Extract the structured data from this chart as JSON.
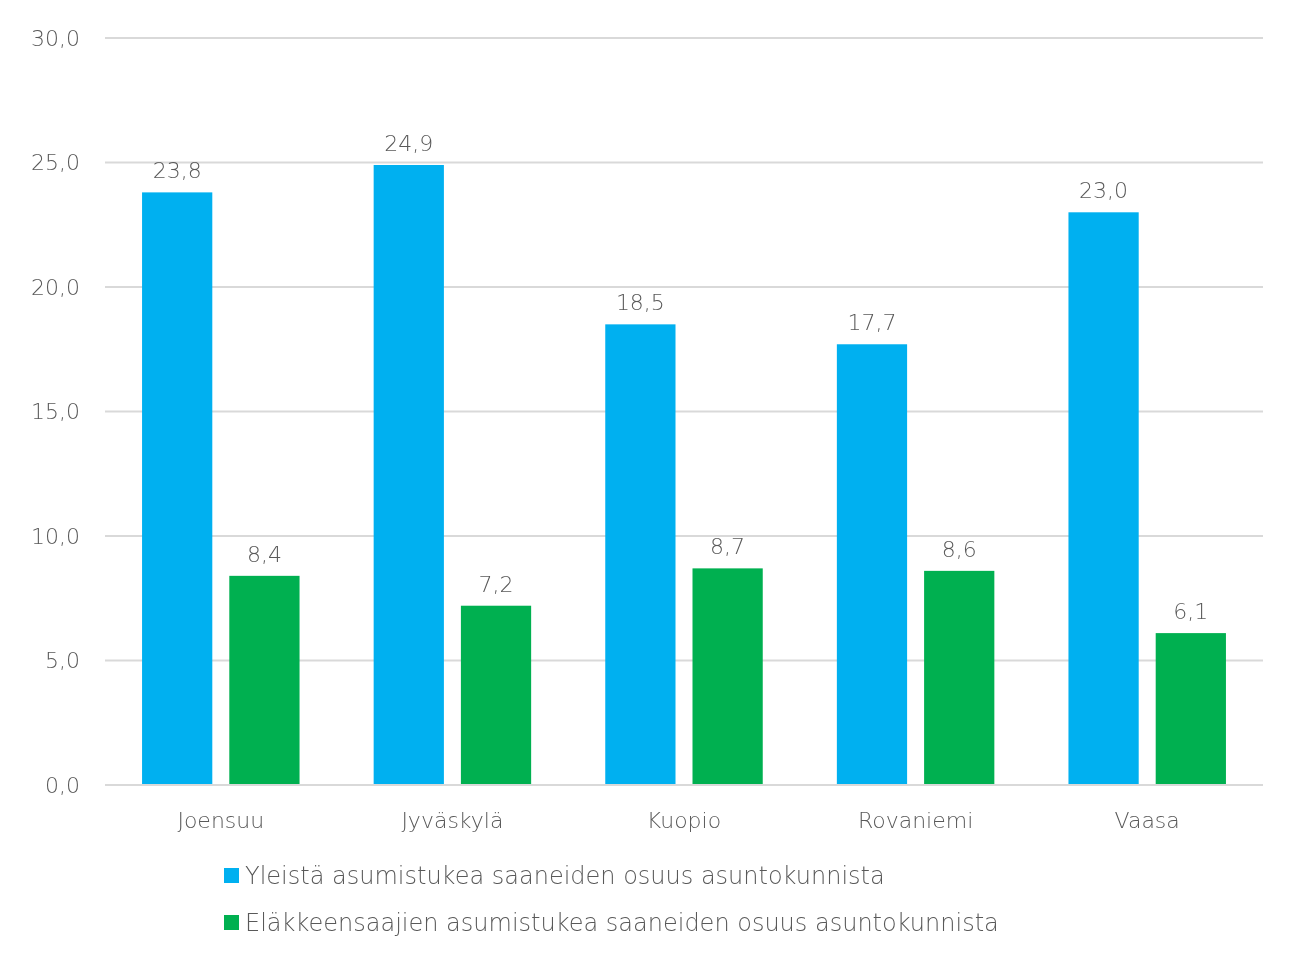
{
  "chart_data": {
    "type": "bar",
    "categories": [
      "Joensuu",
      "Jyväskylä",
      "Kuopio",
      "Rovaniemi",
      "Vaasa"
    ],
    "series": [
      {
        "name": "Yleistä asumistukea saaneiden osuus asuntokunnista",
        "color": "#00b0f0",
        "values": [
          23.8,
          24.9,
          18.5,
          17.7,
          23.0
        ],
        "value_labels": [
          "23,8",
          "24,9",
          "18,5",
          "17,7",
          "23,0"
        ]
      },
      {
        "name": "Eläkkeensaajien asumistukea saaneiden osuus asuntokunnista",
        "color": "#00b050",
        "values": [
          8.4,
          7.2,
          8.7,
          8.6,
          6.1
        ],
        "value_labels": [
          "8,4",
          "7,2",
          "8,7",
          "8,6",
          "6,1"
        ]
      }
    ],
    "ylim": [
      0,
      30
    ],
    "yticks": [
      {
        "value": 0,
        "label": "0,0"
      },
      {
        "value": 5,
        "label": "5,0"
      },
      {
        "value": 10,
        "label": "10,0"
      },
      {
        "value": 15,
        "label": "15,0"
      },
      {
        "value": 20,
        "label": "20,0"
      },
      {
        "value": 25,
        "label": "25,0"
      },
      {
        "value": 30,
        "label": "30,0"
      }
    ],
    "grid": "y",
    "legend": "bottom"
  }
}
